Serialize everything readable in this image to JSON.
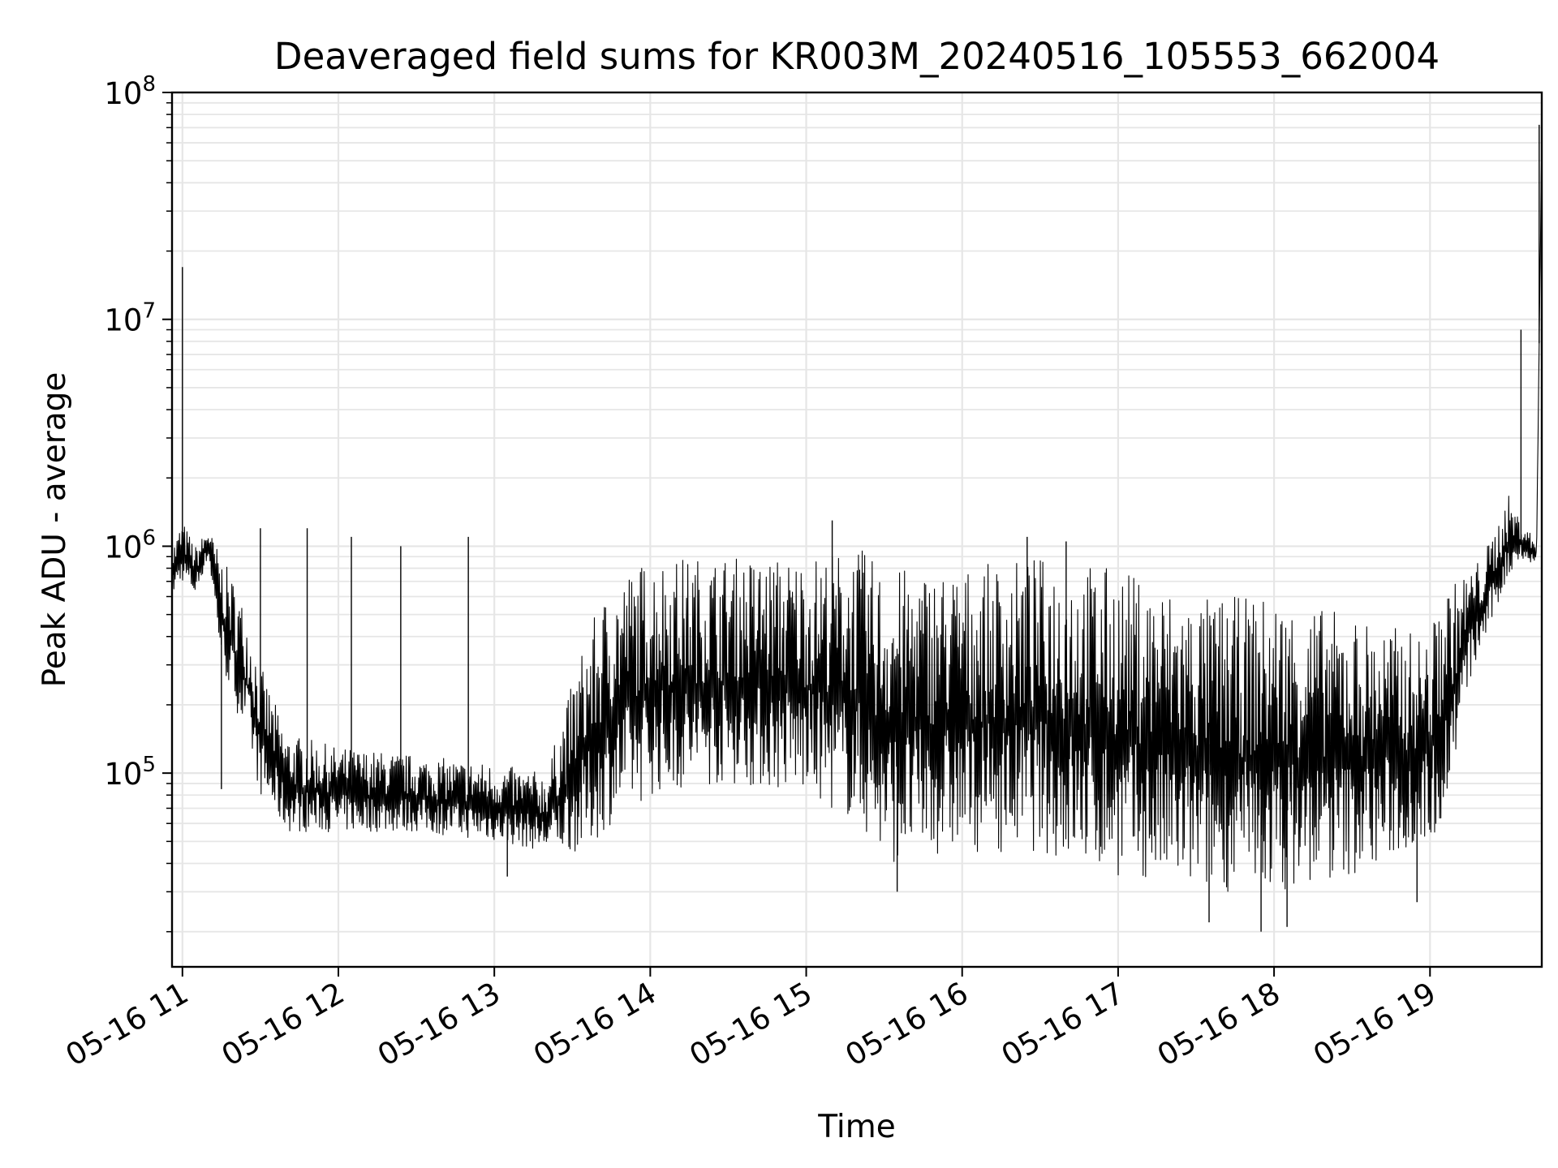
{
  "chart_data": {
    "type": "line",
    "title": "Deaveraged field sums for KR003M_20240516_105553_662004",
    "xlabel": "Time",
    "ylabel": "Peak ADU - average",
    "y_scale": "log",
    "ylim": [
      14000,
      100000000
    ],
    "xlim": [
      "2024-05-16T10:56",
      "2024-05-16T19:43"
    ],
    "grid": "major and minor",
    "x_ticks": [
      {
        "x": "2024-05-16T11:00",
        "label": "05-16 11"
      },
      {
        "x": "2024-05-16T12:00",
        "label": "05-16 12"
      },
      {
        "x": "2024-05-16T13:00",
        "label": "05-16 13"
      },
      {
        "x": "2024-05-16T14:00",
        "label": "05-16 14"
      },
      {
        "x": "2024-05-16T15:00",
        "label": "05-16 15"
      },
      {
        "x": "2024-05-16T16:00",
        "label": "05-16 16"
      },
      {
        "x": "2024-05-16T17:00",
        "label": "05-16 17"
      },
      {
        "x": "2024-05-16T18:00",
        "label": "05-16 18"
      },
      {
        "x": "2024-05-16T19:00",
        "label": "05-16 19"
      }
    ],
    "y_ticks": [
      {
        "value": 100000,
        "base": "10",
        "exp": "5"
      },
      {
        "value": 1000000,
        "base": "10",
        "exp": "6"
      },
      {
        "value": 10000000,
        "base": "10",
        "exp": "7"
      },
      {
        "value": 100000000,
        "base": "10",
        "exp": "8"
      }
    ],
    "series": [
      {
        "color": "#000000",
        "envelope": {
          "x": [
            "2024-05-16T10:56",
            "2024-05-16T11:00",
            "2024-05-16T11:05",
            "2024-05-16T11:10",
            "2024-05-16T11:15",
            "2024-05-16T11:20",
            "2024-05-16T11:25",
            "2024-05-16T11:30",
            "2024-05-16T11:40",
            "2024-05-16T12:00",
            "2024-05-16T12:30",
            "2024-05-16T13:00",
            "2024-05-16T13:20",
            "2024-05-16T13:35",
            "2024-05-16T13:45",
            "2024-05-16T14:00",
            "2024-05-16T14:30",
            "2024-05-16T15:00",
            "2024-05-16T15:20",
            "2024-05-16T15:30",
            "2024-05-16T16:00",
            "2024-05-16T16:30",
            "2024-05-16T16:40",
            "2024-05-16T17:00",
            "2024-05-16T17:30",
            "2024-05-16T18:00",
            "2024-05-16T18:30",
            "2024-05-16T19:00",
            "2024-05-16T19:05",
            "2024-05-16T19:10",
            "2024-05-16T19:15",
            "2024-05-16T19:20",
            "2024-05-16T19:25",
            "2024-05-16T19:30",
            "2024-05-16T19:35",
            "2024-05-16T19:40",
            "2024-05-16T19:41",
            "2024-05-16T19:43"
          ],
          "low": [
            600000,
            700000,
            600000,
            900000,
            300000,
            200000,
            140000,
            80000,
            55000,
            55000,
            55000,
            50000,
            45000,
            45000,
            60000,
            80000,
            90000,
            80000,
            60000,
            40000,
            45000,
            45000,
            40000,
            35000,
            30000,
            30000,
            35000,
            50000,
            60000,
            120000,
            250000,
            350000,
            500000,
            700000,
            900000,
            800000,
            900000,
            60000000
          ],
          "high": [
            1000000,
            1300000,
            1000000,
            1200000,
            900000,
            700000,
            500000,
            300000,
            150000,
            130000,
            120000,
            110000,
            100000,
            400000,
            700000,
            900000,
            900000,
            900000,
            1000000,
            800000,
            800000,
            900000,
            900000,
            800000,
            600000,
            600000,
            500000,
            400000,
            700000,
            700000,
            800000,
            900000,
            1200000,
            1700000,
            1300000,
            1100000,
            1000000,
            70000000
          ]
        },
        "spikes": [
          {
            "x": "2024-05-16T11:00",
            "y": 17000000
          },
          {
            "x": "2024-05-16T11:15",
            "y": 85000
          },
          {
            "x": "2024-05-16T11:30",
            "y": 1200000
          },
          {
            "x": "2024-05-16T11:48",
            "y": 1200000
          },
          {
            "x": "2024-05-16T12:05",
            "y": 1100000
          },
          {
            "x": "2024-05-16T12:24",
            "y": 1000000
          },
          {
            "x": "2024-05-16T12:50",
            "y": 1100000
          },
          {
            "x": "2024-05-16T13:05",
            "y": 35000
          },
          {
            "x": "2024-05-16T15:10",
            "y": 1300000
          },
          {
            "x": "2024-05-16T15:35",
            "y": 30000
          },
          {
            "x": "2024-05-16T16:25",
            "y": 1100000
          },
          {
            "x": "2024-05-16T16:40",
            "y": 1050000
          },
          {
            "x": "2024-05-16T17:35",
            "y": 22000
          },
          {
            "x": "2024-05-16T17:55",
            "y": 20000
          },
          {
            "x": "2024-05-16T18:05",
            "y": 21000
          },
          {
            "x": "2024-05-16T18:55",
            "y": 27000
          },
          {
            "x": "2024-05-16T19:35",
            "y": 9000000
          },
          {
            "x": "2024-05-16T19:42",
            "y": 72000000
          }
        ]
      }
    ]
  }
}
